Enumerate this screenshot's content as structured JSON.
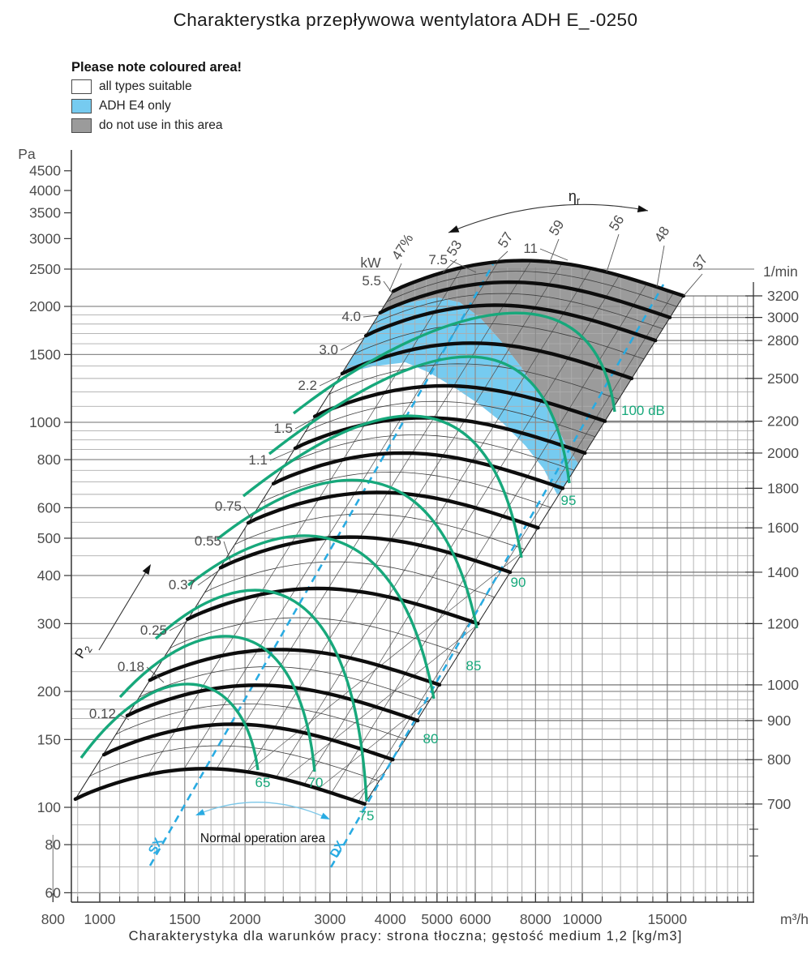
{
  "title": "Charakterystka przepływowa wentylatora ADH E_-0250",
  "caption": "Charakterystyka dla warunków pracy: strona tłoczna; gęstość medium 1,2 [kg/m3]",
  "legend": {
    "title": "Please note coloured area!",
    "items": [
      {
        "label": "all types suitable",
        "colorKey": "suitable_white"
      },
      {
        "label": "ADH E4 only",
        "colorKey": "adh_e4_blue"
      },
      {
        "label": "do not use in this area",
        "colorKey": "do_not_use_gray"
      }
    ]
  },
  "colors": {
    "suitable_white": "#ffffff",
    "adh_e4_blue": "#76CBF0",
    "do_not_use_gray": "#9B9B9B",
    "sound_green": "#17A87B",
    "dashed_cyan": "#29ABE2",
    "curve_black": "#0d0d0d",
    "axis_text": "#4d4d4d"
  },
  "chart_data": {
    "type": "line",
    "title": "Charakterystka przepływowa wentylatora ADH E_-0250",
    "x_axis": {
      "label": "m³/h",
      "scale": "log",
      "range": [
        800,
        17000
      ],
      "ticks": [
        800,
        1000,
        1500,
        2000,
        3000,
        4000,
        5000,
        6000,
        8000,
        10000,
        15000
      ]
    },
    "y_axis_left": {
      "label": "Pa",
      "scale": "log",
      "range": [
        60,
        5000
      ],
      "ticks": [
        4500,
        4000,
        3500,
        3000,
        2500,
        2000,
        1500,
        1000,
        800,
        600,
        500,
        400,
        300,
        200,
        150,
        100,
        80,
        60
      ]
    },
    "y_axis_right": {
      "label": "1/min",
      "scale": "log",
      "ticks": [
        3200,
        3000,
        2800,
        2500,
        2200,
        2000,
        1800,
        1600,
        1400,
        1200,
        1000,
        900,
        800,
        700
      ]
    },
    "power_unit": "kW",
    "power_label": {
      "text": "P",
      "sub": "2"
    },
    "efficiency_label": {
      "text": "η",
      "sub": "r"
    },
    "power_lines_kw": [
      "0.12",
      "0.18",
      "0.25",
      "0.37",
      "0.55",
      "0.75",
      "1.1",
      "1.5",
      "2.2",
      "3.0",
      "4.0",
      "5.5",
      "7.5",
      "11"
    ],
    "efficiency_ticks": [
      "47%",
      "53",
      "57",
      "59",
      "56",
      "48",
      "37"
    ],
    "fan_curves": [
      {
        "rpm": 700,
        "q_min": 890,
        "q_max": 3540,
        "p_at_q_min": 105,
        "p_at_q_max": 102
      },
      {
        "rpm": 800,
        "q_min": 1020,
        "q_max": 4050,
        "p_at_q_min": 137,
        "p_at_q_max": 133
      },
      {
        "rpm": 900,
        "q_min": 1140,
        "q_max": 4560,
        "p_at_q_min": 173,
        "p_at_q_max": 168
      },
      {
        "rpm": 1000,
        "q_min": 1270,
        "q_max": 5060,
        "p_at_q_min": 214,
        "p_at_q_max": 208
      },
      {
        "rpm": 1200,
        "q_min": 1520,
        "q_max": 6080,
        "p_at_q_min": 308,
        "p_at_q_max": 300
      },
      {
        "rpm": 1400,
        "q_min": 1780,
        "q_max": 7090,
        "p_at_q_min": 419,
        "p_at_q_max": 408
      },
      {
        "rpm": 1600,
        "q_min": 2030,
        "q_max": 8100,
        "p_at_q_min": 548,
        "p_at_q_max": 532
      },
      {
        "rpm": 1800,
        "q_min": 2290,
        "q_max": 9110,
        "p_at_q_min": 693,
        "p_at_q_max": 674
      },
      {
        "rpm": 2000,
        "q_min": 2540,
        "q_max": 10130,
        "p_at_q_min": 856,
        "p_at_q_max": 832
      },
      {
        "rpm": 2200,
        "q_min": 2790,
        "q_max": 11140,
        "p_at_q_min": 1036,
        "p_at_q_max": 1007
      },
      {
        "rpm": 2500,
        "q_min": 3180,
        "q_max": 12660,
        "p_at_q_min": 1338,
        "p_at_q_max": 1300
      },
      {
        "rpm": 2800,
        "q_min": 3560,
        "q_max": 14180,
        "p_at_q_min": 1678,
        "p_at_q_max": 1631
      },
      {
        "rpm": 3000,
        "q_min": 3810,
        "q_max": 15190,
        "p_at_q_min": 1926,
        "p_at_q_max": 1872
      },
      {
        "rpm": 3200,
        "q_min": 4060,
        "q_max": 16210,
        "p_at_q_min": 2191,
        "p_at_q_max": 2130
      }
    ],
    "sound_curves": [
      {
        "db": 65,
        "label": "65"
      },
      {
        "db": 70,
        "label": "70"
      },
      {
        "db": 75,
        "label": "75"
      },
      {
        "db": 80,
        "label": "80"
      },
      {
        "db": 85,
        "label": "85"
      },
      {
        "db": 90,
        "label": "90"
      },
      {
        "db": 95,
        "label": "95"
      },
      {
        "db": 100,
        "label": "100 dB"
      }
    ],
    "annotations": {
      "normal_area": "Normal operation area",
      "left_dashed_line": "SX",
      "right_dashed_line": "DX"
    }
  }
}
